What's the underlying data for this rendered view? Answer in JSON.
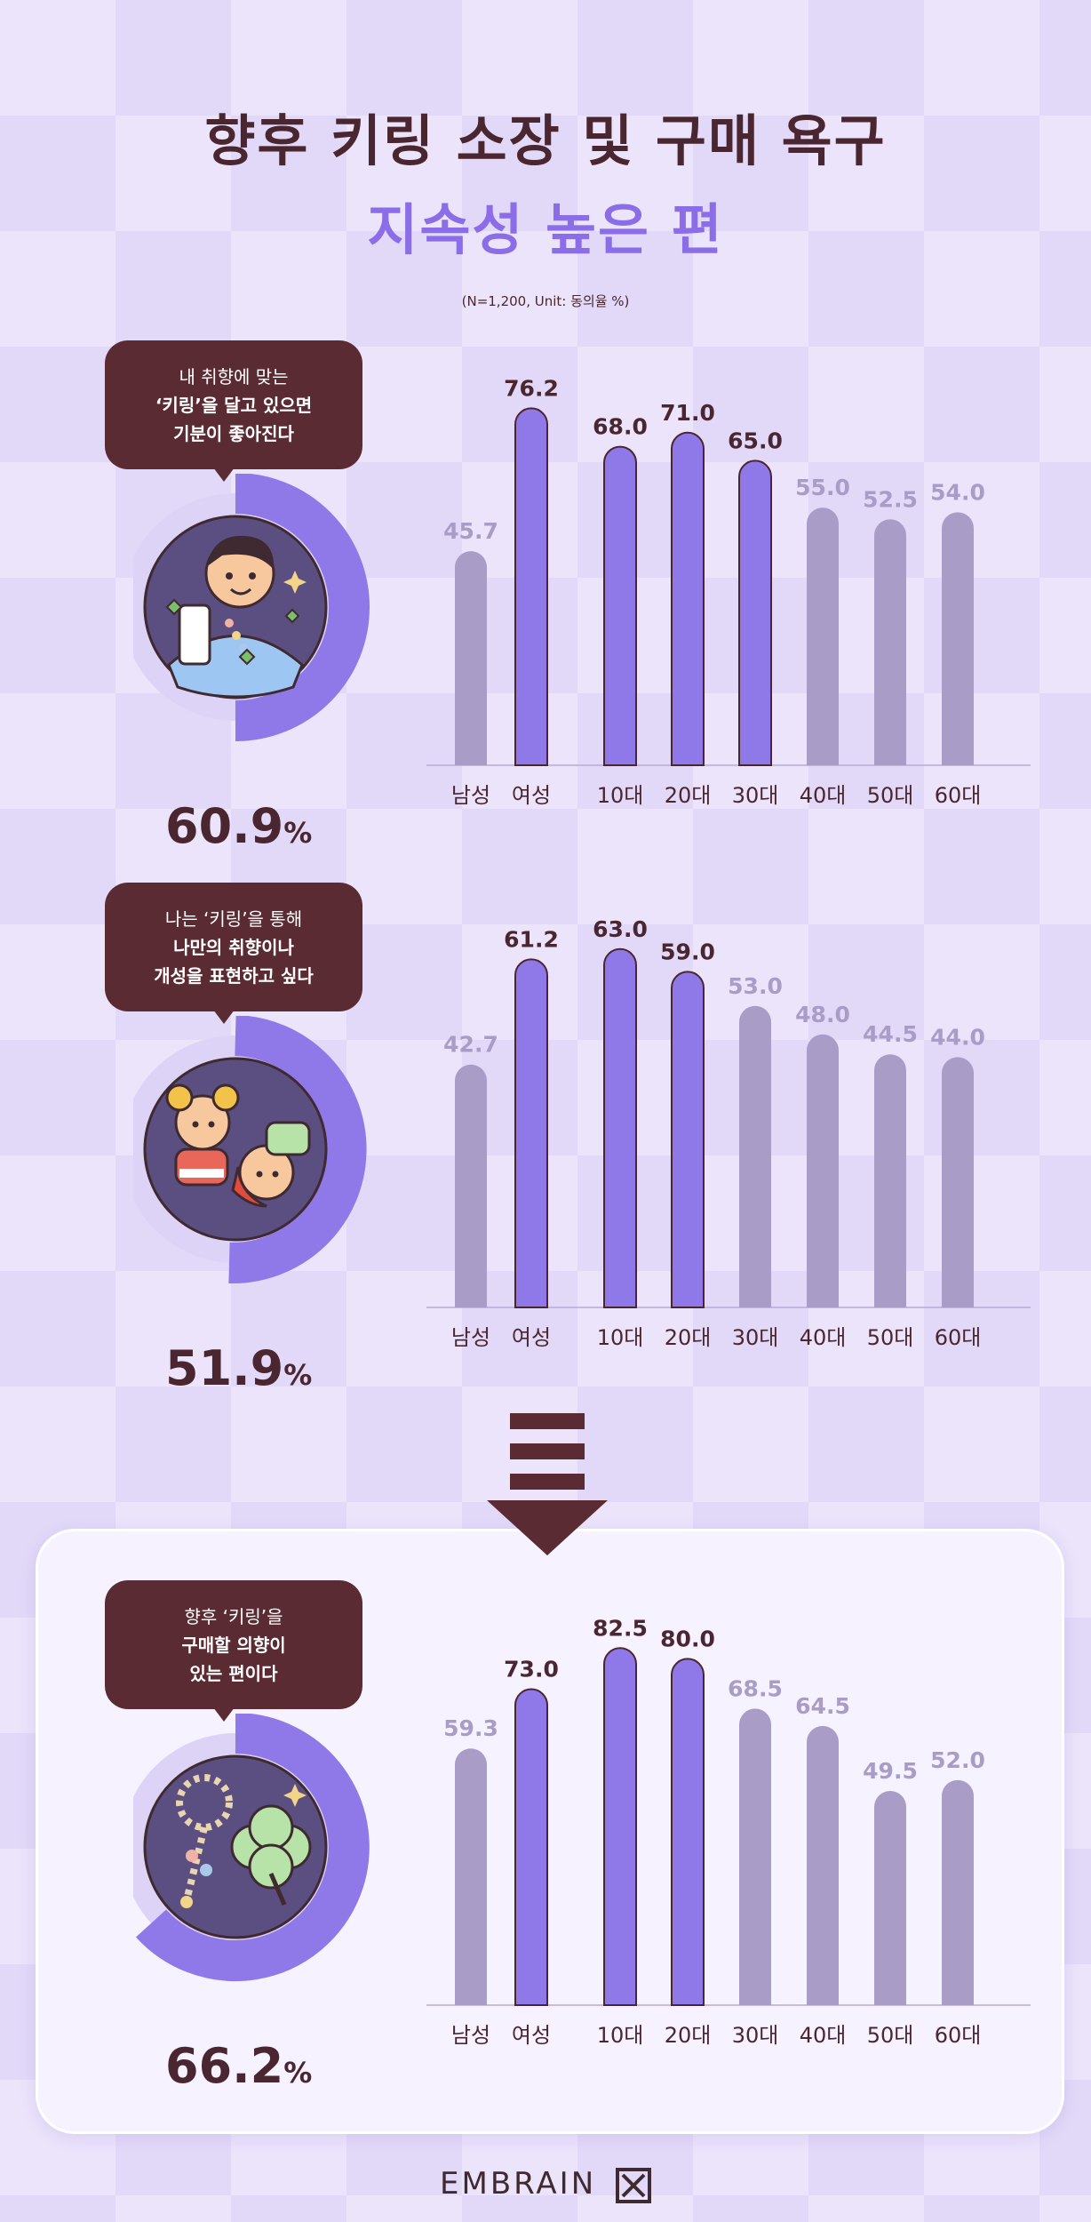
{
  "header": {
    "title_line1": "향후 키링 소장 및 구매 욕구",
    "title_line2": "지속성 높은 편",
    "note": "(N=1,200, Unit: 동의율 %)"
  },
  "brand": {
    "logo_text": "EMBRAIN"
  },
  "colors": {
    "highlight_bar": "#8f78e8",
    "normal_bar": "#a99dc8",
    "highlight_label": "#4a2730",
    "normal_label": "#a99dc8",
    "donut_fill": "#8f78e8",
    "donut_track": "#ddd3f6",
    "bubble": "#5a2b32"
  },
  "sections": [
    {
      "bubble": {
        "line1": "내 취향에 맞는",
        "line2": "‘키링’을 달고 있으면",
        "line3": "기분이 좋아진다"
      },
      "percent_value": "60.9",
      "percent_unit": "%",
      "percent": 60.9,
      "illustration": "person-with-phone-keyring-icon"
    },
    {
      "bubble": {
        "line1": "나는 ‘키링’을 통해",
        "line2": "나만의 취향이나",
        "line3": "개성을 표현하고 싶다"
      },
      "percent_value": "51.9",
      "percent_unit": "%",
      "percent": 51.9,
      "illustration": "doll-keyrings-icon"
    },
    {
      "bubble": {
        "line1": "향후 ‘키링’을",
        "line2": "구매할 의향이",
        "line3": "있는 편이다"
      },
      "percent_value": "66.2",
      "percent_unit": "%",
      "percent": 66.2,
      "illustration": "clover-keyring-icon"
    }
  ],
  "chart_data": [
    {
      "type": "bar",
      "categories": [
        "남성",
        "여성",
        "10대",
        "20대",
        "30대",
        "40대",
        "50대",
        "60대"
      ],
      "values": [
        45.7,
        76.2,
        68.0,
        71.0,
        65.0,
        55.0,
        52.5,
        54.0
      ],
      "value_labels": [
        "45.7",
        "76.2",
        "68.0",
        "71.0",
        "65.0",
        "55.0",
        "52.5",
        "54.0"
      ],
      "highlight": [
        false,
        true,
        true,
        true,
        true,
        false,
        false,
        false
      ],
      "ylim": [
        0,
        85
      ]
    },
    {
      "type": "bar",
      "categories": [
        "남성",
        "여성",
        "10대",
        "20대",
        "30대",
        "40대",
        "50대",
        "60대"
      ],
      "values": [
        42.7,
        61.2,
        63.0,
        59.0,
        53.0,
        48.0,
        44.5,
        44.0
      ],
      "value_labels": [
        "42.7",
        "61.2",
        "63.0",
        "59.0",
        "53.0",
        "48.0",
        "44.5",
        "44.0"
      ],
      "highlight": [
        false,
        true,
        true,
        true,
        false,
        false,
        false,
        false
      ],
      "ylim": [
        0,
        70
      ]
    },
    {
      "type": "bar",
      "categories": [
        "남성",
        "여성",
        "10대",
        "20대",
        "30대",
        "40대",
        "50대",
        "60대"
      ],
      "values": [
        59.3,
        73.0,
        82.5,
        80.0,
        68.5,
        64.5,
        49.5,
        52.0
      ],
      "value_labels": [
        "59.3",
        "73.0",
        "82.5",
        "80.0",
        "68.5",
        "64.5",
        "49.5",
        "52.0"
      ],
      "highlight": [
        false,
        true,
        true,
        true,
        false,
        false,
        false,
        false
      ],
      "ylim": [
        0,
        92
      ]
    }
  ]
}
